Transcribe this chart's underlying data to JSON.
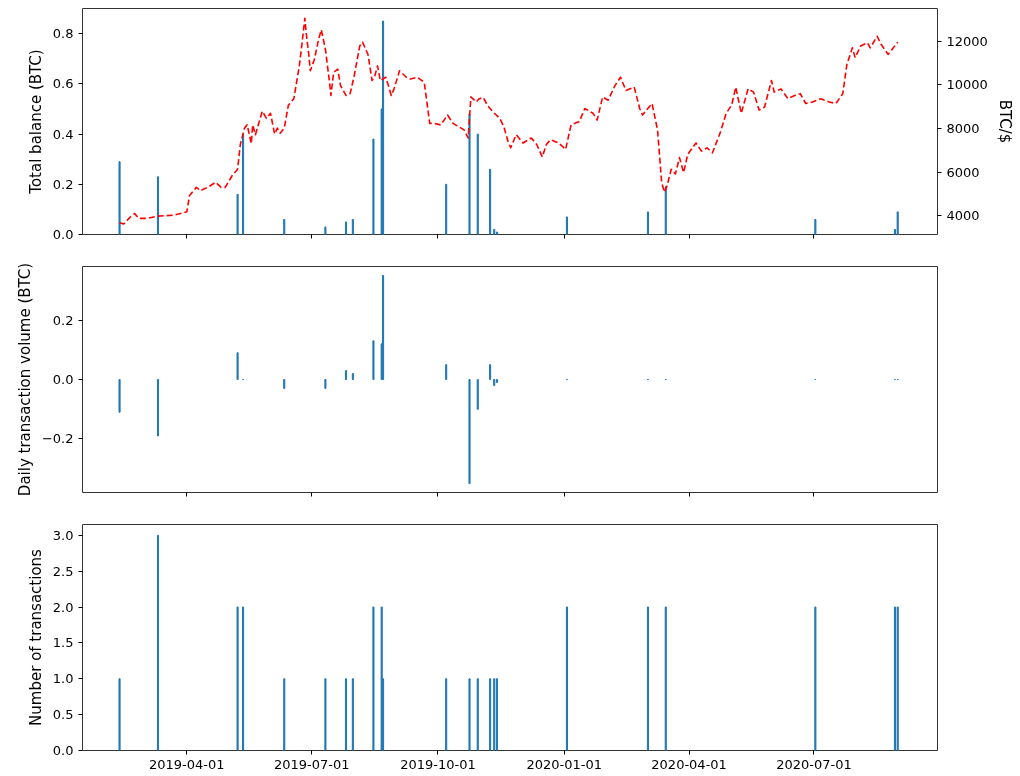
{
  "chart_data": [
    {
      "type": "bar",
      "ylabel": "Total balance (BTC)",
      "y2label": "BTC/$",
      "tick_labels": "y",
      "x": [
        "2019-02-11",
        "2019-03-11",
        "2019-05-08",
        "2019-05-12",
        "2019-06-11",
        "2019-07-11",
        "2019-07-26",
        "2019-07-31",
        "2019-08-15",
        "2019-08-21",
        "2019-08-22",
        "2019-10-07",
        "2019-10-24",
        "2019-10-30",
        "2019-11-08",
        "2019-11-11",
        "2019-11-13",
        "2020-01-03",
        "2020-03-02",
        "2020-03-15",
        "2020-07-02",
        "2020-08-29",
        "2020-08-31"
      ],
      "xlim": [
        "2019-01-15",
        "2020-09-29"
      ],
      "xticks": [
        "2019-04-01",
        "2019-07-01",
        "2019-10-01",
        "2020-01-01",
        "2020-04-01",
        "2020-07-01"
      ],
      "ylim": [
        0,
        0.9
      ],
      "yticks": [
        {
          "value": 0,
          "label": "0.0"
        },
        {
          "value": 0.2,
          "label": "0.2"
        },
        {
          "value": 0.4,
          "label": "0.4"
        },
        {
          "value": 0.6,
          "label": "0.6"
        },
        {
          "value": 0.8,
          "label": "0.8"
        }
      ],
      "y2lim": [
        3150,
        13500
      ],
      "y2ticks": [
        4000,
        6000,
        8000,
        10000,
        12000
      ],
      "series": [
        {
          "color": "#1f77b4",
          "values": [
            0.29,
            0.23,
            0.16,
            0.4,
            0.06,
            0.03,
            0.05,
            0.06,
            0.38,
            0.5,
            0.85,
            0.2,
            0.48,
            0.4,
            0.26,
            0.02,
            0.01,
            0.07,
            0.09,
            0.19,
            0.06,
            0.02,
            0.09
          ]
        },
        {
          "type": "line",
          "axis": "y2",
          "color": "#ff0000",
          "line_style": "dashed",
          "x": [
            "2019-02-11",
            "2019-02-14",
            "2019-02-19",
            "2019-02-22",
            "2019-02-25",
            "2019-03-03",
            "2019-03-11",
            "2019-03-23",
            "2019-04-01",
            "2019-04-03",
            "2019-04-08",
            "2019-04-11",
            "2019-04-17",
            "2019-04-22",
            "2019-04-26",
            "2019-04-29",
            "2019-05-04",
            "2019-05-08",
            "2019-05-10",
            "2019-05-13",
            "2019-05-15",
            "2019-05-18",
            "2019-05-19",
            "2019-05-21",
            "2019-05-26",
            "2019-05-29",
            "2019-06-01",
            "2019-06-04",
            "2019-06-06",
            "2019-06-08",
            "2019-06-11",
            "2019-06-14",
            "2019-06-18",
            "2019-06-22",
            "2019-06-24",
            "2019-06-26",
            "2019-06-27",
            "2019-06-29",
            "2019-06-30",
            "2019-07-03",
            "2019-07-06",
            "2019-07-08",
            "2019-07-11",
            "2019-07-14",
            "2019-07-15",
            "2019-07-17",
            "2019-07-20",
            "2019-07-22",
            "2019-07-26",
            "2019-07-29",
            "2019-08-01",
            "2019-08-05",
            "2019-08-07",
            "2019-08-11",
            "2019-08-14",
            "2019-08-16",
            "2019-08-18",
            "2019-08-20",
            "2019-08-24",
            "2019-08-28",
            "2019-08-30",
            "2019-09-03",
            "2019-09-08",
            "2019-09-11",
            "2019-09-16",
            "2019-09-21",
            "2019-09-25",
            "2019-09-28",
            "2019-10-03",
            "2019-10-08",
            "2019-10-12",
            "2019-10-16",
            "2019-10-20",
            "2019-10-23",
            "2019-10-25",
            "2019-10-29",
            "2019-10-31",
            "2019-11-03",
            "2019-11-06",
            "2019-11-10",
            "2019-11-15",
            "2019-11-18",
            "2019-11-21",
            "2019-11-23",
            "2019-11-27",
            "2019-12-02",
            "2019-12-08",
            "2019-12-12",
            "2019-12-16",
            "2019-12-19",
            "2019-12-22",
            "2019-12-28",
            "2020-01-02",
            "2020-01-06",
            "2020-01-12",
            "2020-01-16",
            "2020-01-22",
            "2020-01-25",
            "2020-01-29",
            "2020-02-02",
            "2020-02-07",
            "2020-02-11",
            "2020-02-15",
            "2020-02-21",
            "2020-02-25",
            "2020-02-27",
            "2020-03-05",
            "2020-03-09",
            "2020-03-12",
            "2020-03-14",
            "2020-03-16",
            "2020-03-19",
            "2020-03-22",
            "2020-03-25",
            "2020-03-28",
            "2020-03-31",
            "2020-04-06",
            "2020-04-10",
            "2020-04-14",
            "2020-04-18",
            "2020-04-24",
            "2020-04-28",
            "2020-05-02",
            "2020-05-05",
            "2020-05-09",
            "2020-05-14",
            "2020-05-18",
            "2020-05-22",
            "2020-05-26",
            "2020-05-31",
            "2020-06-02",
            "2020-06-07",
            "2020-06-12",
            "2020-06-17",
            "2020-06-21",
            "2020-06-25",
            "2020-06-30",
            "2020-07-06",
            "2020-07-12",
            "2020-07-17",
            "2020-07-22",
            "2020-07-25",
            "2020-07-29",
            "2020-07-31",
            "2020-08-04",
            "2020-08-09",
            "2020-08-11",
            "2020-08-16",
            "2020-08-19",
            "2020-08-24",
            "2020-08-27",
            "2020-08-31"
          ],
          "values": [
            3690,
            3630,
            3960,
            4110,
            3890,
            3890,
            3990,
            4040,
            4190,
            4940,
            5310,
            5160,
            5340,
            5540,
            5310,
            5310,
            5840,
            6140,
            7270,
            8020,
            8170,
            7310,
            8170,
            7720,
            8800,
            8470,
            8700,
            7750,
            8020,
            7790,
            8020,
            9070,
            9370,
            10880,
            11930,
            13050,
            12380,
            11330,
            10650,
            11180,
            12080,
            12530,
            11630,
            10120,
            9520,
            10570,
            10720,
            9970,
            9520,
            9600,
            10420,
            11780,
            11960,
            11400,
            10200,
            10420,
            10870,
            10200,
            10350,
            9520,
            9820,
            10650,
            10350,
            10270,
            10350,
            10120,
            8240,
            8240,
            8170,
            8620,
            8240,
            8090,
            7940,
            7570,
            9450,
            9220,
            9370,
            9420,
            9070,
            8770,
            8470,
            8090,
            7420,
            7120,
            7720,
            7340,
            7570,
            7270,
            6700,
            7270,
            7490,
            7340,
            7040,
            8170,
            8320,
            8920,
            8700,
            8390,
            9450,
            9300,
            9970,
            10350,
            9750,
            9900,
            8920,
            8620,
            9150,
            7940,
            5540,
            5090,
            5390,
            6140,
            5920,
            6670,
            5990,
            6820,
            7340,
            6970,
            7120,
            6890,
            7870,
            8700,
            9070,
            9900,
            8700,
            9820,
            9670,
            8850,
            8990,
            10200,
            9670,
            9820,
            9370,
            9520,
            9600,
            9150,
            9220,
            9370,
            9220,
            9150,
            9600,
            10950,
            11700,
            11250,
            11780,
            11930,
            11700,
            12230,
            11850,
            11400,
            11630,
            11960
          ]
        }
      ]
    },
    {
      "type": "bar",
      "ylabel": "Daily transaction volume (BTC)",
      "tick_labels": "y",
      "x": [
        "2019-02-11",
        "2019-03-11",
        "2019-05-08",
        "2019-05-12",
        "2019-06-11",
        "2019-07-11",
        "2019-07-26",
        "2019-07-31",
        "2019-08-15",
        "2019-08-21",
        "2019-08-22",
        "2019-10-07",
        "2019-10-24",
        "2019-10-30",
        "2019-11-08",
        "2019-11-11",
        "2019-11-13",
        "2020-01-03",
        "2020-03-02",
        "2020-03-15",
        "2020-07-02",
        "2020-08-29",
        "2020-08-31"
      ],
      "xlim": [
        "2019-01-15",
        "2020-09-29"
      ],
      "xticks": [
        "2019-04-01",
        "2019-07-01",
        "2019-10-01",
        "2020-01-01",
        "2020-04-01",
        "2020-07-01"
      ],
      "ylim": [
        -0.38,
        0.38
      ],
      "yticks": [
        {
          "value": -0.2,
          "label": "−0.2"
        },
        {
          "value": 0,
          "label": "0.0"
        },
        {
          "value": 0.2,
          "label": "0.2"
        }
      ],
      "series": [
        {
          "color": "#1f77b4",
          "values": [
            -0.11,
            -0.19,
            0.09,
            0,
            -0.03,
            -0.03,
            0.03,
            0.02,
            0.13,
            0.12,
            0.35,
            0.05,
            -0.35,
            -0.1,
            0.05,
            -0.02,
            -0.01,
            0,
            0,
            0,
            0,
            0,
            0
          ]
        }
      ]
    },
    {
      "type": "bar",
      "ylabel": "Number of transactions",
      "x": [
        "2019-02-11",
        "2019-03-11",
        "2019-05-08",
        "2019-05-12",
        "2019-06-11",
        "2019-07-11",
        "2019-07-26",
        "2019-07-31",
        "2019-08-15",
        "2019-08-21",
        "2019-08-22",
        "2019-10-07",
        "2019-10-24",
        "2019-10-30",
        "2019-11-08",
        "2019-11-11",
        "2019-11-13",
        "2020-01-03",
        "2020-03-02",
        "2020-03-15",
        "2020-07-02",
        "2020-08-29",
        "2020-08-31"
      ],
      "xlim": [
        "2019-01-15",
        "2020-09-29"
      ],
      "xticks": [
        "2019-04-01",
        "2019-07-01",
        "2019-10-01",
        "2020-01-01",
        "2020-04-01",
        "2020-07-01"
      ],
      "ylim": [
        0,
        3.15
      ],
      "yticks": [
        {
          "value": 0,
          "label": "0.0"
        },
        {
          "value": 0.5,
          "label": "0.5"
        },
        {
          "value": 1,
          "label": "1.0"
        },
        {
          "value": 1.5,
          "label": "1.5"
        },
        {
          "value": 2,
          "label": "2.0"
        },
        {
          "value": 2.5,
          "label": "2.5"
        },
        {
          "value": 3,
          "label": "3.0"
        }
      ],
      "series": [
        {
          "color": "#1f77b4",
          "values": [
            1,
            3,
            2,
            2,
            1,
            1,
            1,
            1,
            2,
            2,
            1,
            1,
            1,
            1,
            1,
            1,
            1,
            2,
            2,
            2,
            2,
            2,
            2
          ]
        }
      ]
    }
  ]
}
